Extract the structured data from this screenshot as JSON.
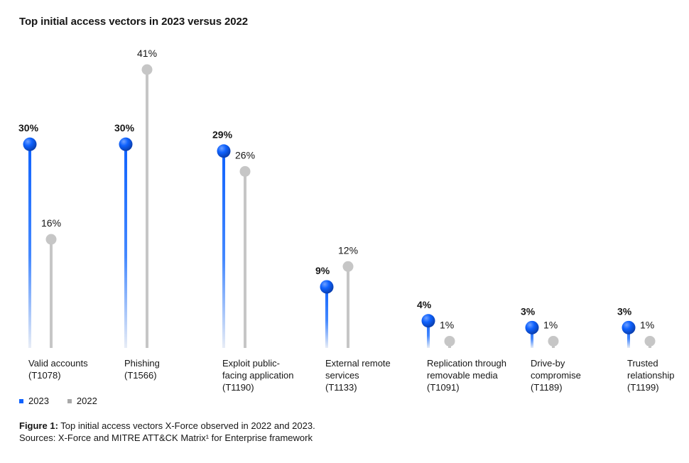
{
  "title": "Top initial access vectors in 2023 versus 2022",
  "colors": {
    "y2023": "#0f62fe",
    "y2022": "#c6c6c6",
    "dot2022": "#c6c6c6"
  },
  "legend": [
    {
      "label": "2023",
      "color": "#0f62fe"
    },
    {
      "label": "2022",
      "color": "#a8a8a8"
    }
  ],
  "caption": {
    "bold": "Figure 1:",
    "line1": " Top initial access vectors X-Force observed in 2022 and 2023.",
    "line2": "Sources: X-Force and MITRE ATT&CK Matrix¹ for Enterprise framework"
  },
  "chart_data": {
    "type": "lollipop",
    "ylim": [
      0,
      45
    ],
    "categories": [
      "Valid accounts\n(T1078)",
      "Phishing\n(T1566)",
      "Exploit public-\nfacing application\n(T1190)",
      "External remote\nservices\n(T1133)",
      "Replication through\nremovable media\n(T1091)",
      "Drive-by\ncompromise\n(T1189)",
      "Trusted\nrelationship\n(T1199)"
    ],
    "series": [
      {
        "name": "2023",
        "values": [
          30,
          30,
          29,
          9,
          4,
          3,
          3
        ],
        "labels": [
          "30%",
          "30%",
          "29%",
          "9%",
          "4%",
          "3%",
          "3%"
        ]
      },
      {
        "name": "2022",
        "values": [
          16,
          41,
          26,
          12,
          1,
          1,
          1
        ],
        "labels": [
          "16%",
          "41%",
          "26%",
          "12%",
          "1%",
          "1%",
          "1%"
        ]
      }
    ]
  }
}
